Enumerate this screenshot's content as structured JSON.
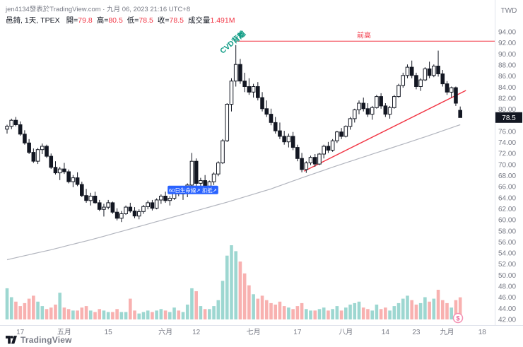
{
  "header": {
    "attribution": "jen4134發表於TradingView.com · 九月 06, 2023 21:16 UTC+8",
    "symbol": "邑錡,",
    "interval": "1天,",
    "exchange": "TPEX",
    "open_label": "開=",
    "open": "79.8",
    "high_label": "高=",
    "high": "80.5",
    "low_label": "低=",
    "low": "78.5",
    "close_label": "收=",
    "close": "78.5",
    "volume_label": "成交量",
    "volume": "1.491M",
    "currency": "TWD"
  },
  "footer": {
    "brand": "TradingView"
  },
  "annotations": {
    "cvd_label": "CVD背離",
    "prev_high_label": "前高",
    "ma_badge_label": "60日生命線↗ 扣抵↗",
    "bubble_glyph": "$"
  },
  "colors": {
    "axis_text": "#787b86",
    "candle": "#131722",
    "accent_red": "#f23645",
    "accent_green": "#089981",
    "accent_blue": "#2962ff",
    "vol_up": "#26a69a",
    "vol_down": "#ef5350",
    "ma_line": "#b2b5be",
    "border": "#e0e3eb"
  },
  "chart_data": {
    "type": "candlestick",
    "title": "邑錡 1天 TPEX",
    "ylabel": "TWD",
    "ylim": [
      42,
      94
    ],
    "price_tick_step": 2,
    "grid": false,
    "last_price": 78.5,
    "volume_max": 5.0,
    "time_labels": [
      {
        "text": "17",
        "i": 3
      },
      {
        "text": "五月",
        "i": 13
      },
      {
        "text": "15",
        "i": 23
      },
      {
        "text": "六月",
        "i": 36
      },
      {
        "text": "12",
        "i": 43
      },
      {
        "text": "七月",
        "i": 56
      },
      {
        "text": "17",
        "i": 66
      },
      {
        "text": "八月",
        "i": 77
      },
      {
        "text": "14",
        "i": 86
      },
      {
        "text": "23",
        "i": 93
      },
      {
        "text": "九月",
        "i": 100
      },
      {
        "text": "18",
        "i": 108
      }
    ],
    "ohlc": [
      [
        76.4,
        77.2,
        75.6,
        76.9
      ],
      [
        76.9,
        78.3,
        76.4,
        78.0
      ],
      [
        78.0,
        78.6,
        76.9,
        77.2
      ],
      [
        77.2,
        77.8,
        75.2,
        75.5
      ],
      [
        75.5,
        76.2,
        73.6,
        73.9
      ],
      [
        73.9,
        74.6,
        71.9,
        72.2
      ],
      [
        72.2,
        72.9,
        70.3,
        70.6
      ],
      [
        70.6,
        73.0,
        70.1,
        72.7
      ],
      [
        72.7,
        73.8,
        71.9,
        73.3
      ],
      [
        73.3,
        73.6,
        71.2,
        71.5
      ],
      [
        71.5,
        72.0,
        69.2,
        69.5
      ],
      [
        69.5,
        70.6,
        68.2,
        68.5
      ],
      [
        68.5,
        69.6,
        67.2,
        69.2
      ],
      [
        69.2,
        70.3,
        68.3,
        68.7
      ],
      [
        68.7,
        69.1,
        66.6,
        66.9
      ],
      [
        66.9,
        68.1,
        65.9,
        67.6
      ],
      [
        67.6,
        68.6,
        66.1,
        66.4
      ],
      [
        66.4,
        66.9,
        64.1,
        64.4
      ],
      [
        64.4,
        65.6,
        63.1,
        63.5
      ],
      [
        63.5,
        64.9,
        62.6,
        64.3
      ],
      [
        64.3,
        65.1,
        62.9,
        63.1
      ],
      [
        63.1,
        63.6,
        61.6,
        61.9
      ],
      [
        61.9,
        62.9,
        60.6,
        62.3
      ],
      [
        62.3,
        63.6,
        61.9,
        63.1
      ],
      [
        63.1,
        63.3,
        61.1,
        61.4
      ],
      [
        61.4,
        62.1,
        59.9,
        60.3
      ],
      [
        60.3,
        61.6,
        59.6,
        61.1
      ],
      [
        61.1,
        62.6,
        60.9,
        62.3
      ],
      [
        62.3,
        63.1,
        61.3,
        61.6
      ],
      [
        61.6,
        62.3,
        60.3,
        60.7
      ],
      [
        60.7,
        61.9,
        60.1,
        61.5
      ],
      [
        61.5,
        62.7,
        61.1,
        62.4
      ],
      [
        62.4,
        63.5,
        61.9,
        63.1
      ],
      [
        63.1,
        63.6,
        61.7,
        62.1
      ],
      [
        62.1,
        63.9,
        61.9,
        63.6
      ],
      [
        63.6,
        64.6,
        62.9,
        64.3
      ],
      [
        64.3,
        65.1,
        63.1,
        63.5
      ],
      [
        63.5,
        64.3,
        62.6,
        63.9
      ],
      [
        63.9,
        65.6,
        63.6,
        65.3
      ],
      [
        65.3,
        66.1,
        64.3,
        64.7
      ],
      [
        64.7,
        65.3,
        63.6,
        64.9
      ],
      [
        64.9,
        66.6,
        64.1,
        66.3
      ],
      [
        66.3,
        72.1,
        65.9,
        70.6
      ],
      [
        70.6,
        71.1,
        66.1,
        66.6
      ],
      [
        66.6,
        67.6,
        65.1,
        67.1
      ],
      [
        67.1,
        68.1,
        65.6,
        66.1
      ],
      [
        66.1,
        67.1,
        65.3,
        66.9
      ],
      [
        66.9,
        68.6,
        66.3,
        68.3
      ],
      [
        68.3,
        70.6,
        67.9,
        70.3
      ],
      [
        70.3,
        74.6,
        70.1,
        74.3
      ],
      [
        74.3,
        81.1,
        74.1,
        80.9
      ],
      [
        80.9,
        85.6,
        79.6,
        85.1
      ],
      [
        85.1,
        91.6,
        84.1,
        88.1
      ],
      [
        88.1,
        89.1,
        84.6,
        85.1
      ],
      [
        85.1,
        86.6,
        83.1,
        84.1
      ],
      [
        84.1,
        85.6,
        82.6,
        83.1
      ],
      [
        83.1,
        84.6,
        82.1,
        84.1
      ],
      [
        84.1,
        84.9,
        81.6,
        82.1
      ],
      [
        82.1,
        83.1,
        79.6,
        80.1
      ],
      [
        80.1,
        81.6,
        78.6,
        79.1
      ],
      [
        79.1,
        80.1,
        77.1,
        77.6
      ],
      [
        77.6,
        78.6,
        75.6,
        76.1
      ],
      [
        76.1,
        77.6,
        74.6,
        75.1
      ],
      [
        75.1,
        76.1,
        73.6,
        74.1
      ],
      [
        74.1,
        75.6,
        73.1,
        75.1
      ],
      [
        75.1,
        75.9,
        72.6,
        73.1
      ],
      [
        73.1,
        73.6,
        70.6,
        71.1
      ],
      [
        71.1,
        72.1,
        68.6,
        69.1
      ],
      [
        69.1,
        70.6,
        68.5,
        70.3
      ],
      [
        70.3,
        71.6,
        69.9,
        71.3
      ],
      [
        71.3,
        71.9,
        69.6,
        70.1
      ],
      [
        70.1,
        72.1,
        69.9,
        71.9
      ],
      [
        71.9,
        73.6,
        71.1,
        73.3
      ],
      [
        73.3,
        74.1,
        72.1,
        72.6
      ],
      [
        72.6,
        74.6,
        72.3,
        74.3
      ],
      [
        74.3,
        76.1,
        73.9,
        75.9
      ],
      [
        75.9,
        76.6,
        74.6,
        75.1
      ],
      [
        75.1,
        77.1,
        74.9,
        76.9
      ],
      [
        76.9,
        78.6,
        76.3,
        78.3
      ],
      [
        78.3,
        80.1,
        77.6,
        79.9
      ],
      [
        79.9,
        81.6,
        79.1,
        81.1
      ],
      [
        81.1,
        82.1,
        79.6,
        80.1
      ],
      [
        80.1,
        81.1,
        78.6,
        79.1
      ],
      [
        79.1,
        80.6,
        78.1,
        80.3
      ],
      [
        80.3,
        82.6,
        80.1,
        82.3
      ],
      [
        82.3,
        82.9,
        80.1,
        80.6
      ],
      [
        80.6,
        81.1,
        78.6,
        79.1
      ],
      [
        79.1,
        80.6,
        78.3,
        80.3
      ],
      [
        80.3,
        82.6,
        80.1,
        82.3
      ],
      [
        82.3,
        84.6,
        82.1,
        84.3
      ],
      [
        84.3,
        86.6,
        83.9,
        86.1
      ],
      [
        86.1,
        88.1,
        85.6,
        87.6
      ],
      [
        87.6,
        88.8,
        85.6,
        86.1
      ],
      [
        86.1,
        86.6,
        83.6,
        84.1
      ],
      [
        84.1,
        85.6,
        83.3,
        85.3
      ],
      [
        85.3,
        87.6,
        85.1,
        87.3
      ],
      [
        87.3,
        88.6,
        85.6,
        86.1
      ],
      [
        86.1,
        88.1,
        85.8,
        87.8
      ],
      [
        87.8,
        90.6,
        85.9,
        86.4
      ],
      [
        86.4,
        87.1,
        84.1,
        84.6
      ],
      [
        84.6,
        85.1,
        82.6,
        83.1
      ],
      [
        83.1,
        84.1,
        82.1,
        83.9
      ],
      [
        83.9,
        84.1,
        80.6,
        81.1
      ],
      [
        79.8,
        80.5,
        78.5,
        78.5
      ]
    ],
    "volume": [
      2.1,
      1.5,
      1.2,
      0.9,
      1.1,
      1.4,
      1.6,
      1.2,
      0.9,
      0.7,
      0.8,
      1.0,
      1.8,
      0.8,
      0.7,
      0.6,
      0.6,
      0.8,
      0.9,
      0.6,
      0.5,
      0.7,
      0.6,
      0.5,
      0.5,
      0.7,
      0.5,
      0.5,
      1.4,
      0.6,
      0.4,
      0.5,
      0.6,
      0.5,
      0.6,
      0.7,
      0.6,
      0.5,
      0.8,
      0.6,
      0.5,
      1.0,
      2.1,
      1.9,
      0.9,
      0.7,
      0.7,
      0.9,
      1.3,
      2.6,
      4.3,
      5.0,
      4.6,
      3.9,
      3.1,
      2.3,
      1.7,
      1.4,
      1.6,
      1.3,
      1.1,
      1.0,
      1.2,
      0.9,
      0.8,
      0.7,
      0.9,
      1.1,
      0.7,
      0.6,
      0.6,
      0.7,
      0.8,
      0.6,
      0.7,
      0.9,
      0.6,
      0.8,
      1.0,
      1.1,
      1.2,
      0.8,
      0.7,
      0.6,
      1.0,
      0.7,
      0.8,
      0.6,
      0.9,
      1.1,
      1.4,
      1.6,
      1.3,
      1.0,
      1.1,
      1.5,
      1.2,
      1.4,
      2.0,
      1.3,
      1.1,
      0.8,
      1.3,
      1.491
    ],
    "ma60_anchors": [
      [
        0,
        52.8
      ],
      [
        10,
        54.6
      ],
      [
        20,
        56.6
      ],
      [
        30,
        58.8
      ],
      [
        40,
        61.0
      ],
      [
        50,
        63.2
      ],
      [
        60,
        65.6
      ],
      [
        67,
        67.6
      ],
      [
        75,
        69.8
      ],
      [
        85,
        72.4
      ],
      [
        95,
        75.0
      ],
      [
        103,
        77.2
      ]
    ],
    "annotations": {
      "prev_high_line": {
        "price": 92.3,
        "from_i": 52,
        "color": "#f23645"
      },
      "trend_line": {
        "from": [
          67.5,
          68.8
        ],
        "to": [
          104.3,
          83.4
        ],
        "color": "#f23645"
      },
      "cvd_text": {
        "i": 49,
        "price": 90.0,
        "rotation": -40,
        "color": "#089981"
      },
      "ma_badge": {
        "from_i": 36.5,
        "to_i": 48,
        "price": 65.4,
        "bg": "#2962ff"
      }
    }
  }
}
